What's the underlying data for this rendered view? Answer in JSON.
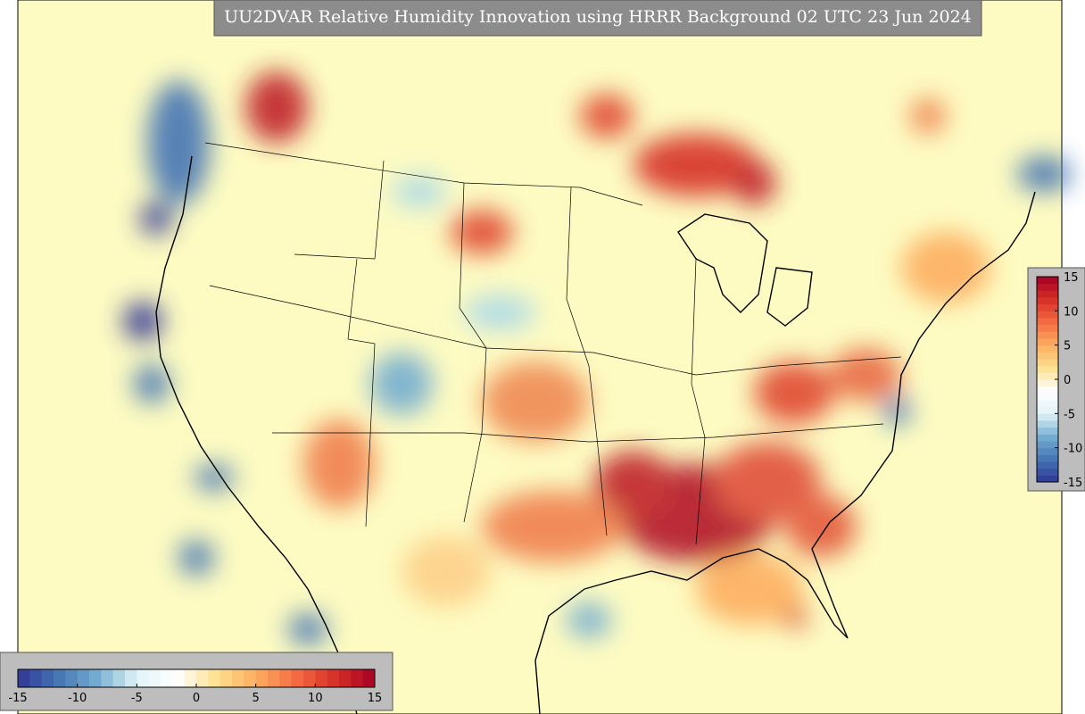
{
  "title": "UU2DVAR Relative Humidity Innovation using HRRR Background 02 UTC 23 Jun 2024",
  "colorbars": [
    {
      "orientation": "horizontal",
      "lim": [
        -15,
        15
      ],
      "ticks": [
        -15,
        -10,
        -5,
        0,
        5,
        10,
        15
      ],
      "colors": [
        "#313695",
        "#4575b4",
        "#74add1",
        "#e0f3f8",
        "#ffffff",
        "#fee090",
        "#fdae61",
        "#f46d43",
        "#d73027",
        "#a50026"
      ]
    },
    {
      "orientation": "vertical",
      "lim": [
        -15,
        15
      ],
      "ticks": [
        -15,
        -10,
        -5,
        0,
        5,
        10,
        15
      ],
      "colors": [
        "#313695",
        "#4575b4",
        "#74add1",
        "#e0f3f8",
        "#ffffff",
        "#fee090",
        "#fdae61",
        "#f46d43",
        "#d73027",
        "#a50026"
      ]
    }
  ]
}
